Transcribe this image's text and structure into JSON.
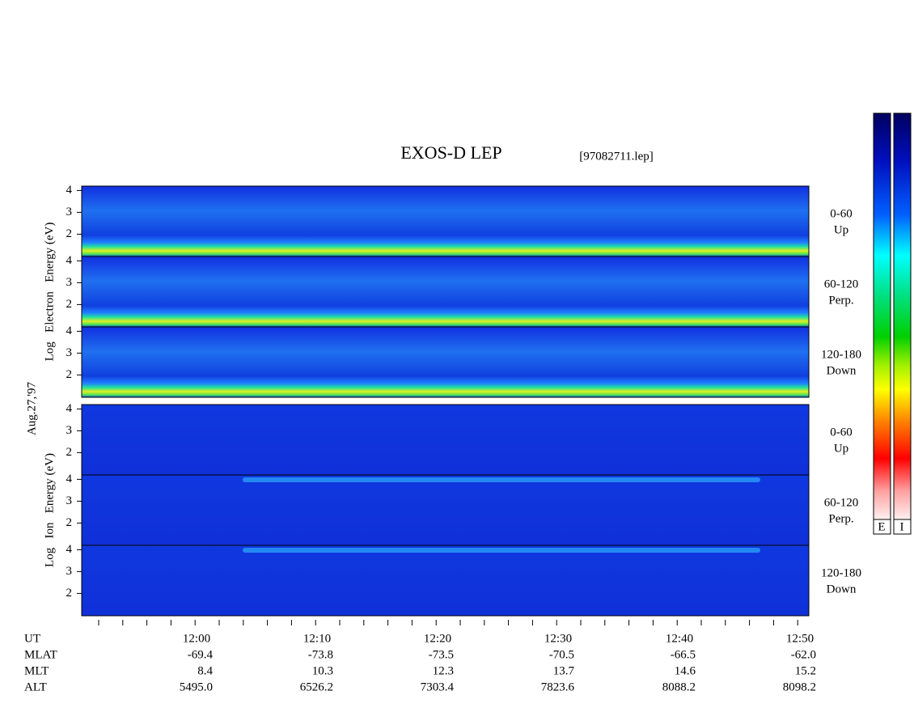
{
  "title": "EXOS-D LEP",
  "file": "[97082711.lep]",
  "date": "Aug.27,'97",
  "electron": {
    "ylabel": "Log   Electron   Energy (eV)",
    "yticks": [
      2,
      3,
      4
    ],
    "panels": [
      {
        "range": "0-60",
        "dir": "Up"
      },
      {
        "range": "60-120",
        "dir": "Perp."
      },
      {
        "range": "120-180",
        "dir": "Down"
      }
    ]
  },
  "ion": {
    "ylabel": "Log   Ion   Energy (eV)",
    "yticks": [
      2,
      3,
      4
    ],
    "panels": [
      {
        "range": "0-60",
        "dir": "Up"
      },
      {
        "range": "60-120",
        "dir": "Perp."
      },
      {
        "range": "120-180",
        "dir": "Down"
      }
    ]
  },
  "time_table": [
    {
      "label": "UT",
      "values": [
        "12:00",
        "12:10",
        "12:20",
        "12:30",
        "12:40",
        "12:50"
      ]
    },
    {
      "label": "MLAT",
      "values": [
        "-69.4",
        "-73.8",
        "-73.5",
        "-70.5",
        "-66.5",
        "-62.0"
      ]
    },
    {
      "label": "MLT",
      "values": [
        "8.4",
        "10.3",
        "12.3",
        "13.7",
        "14.6",
        "15.2"
      ]
    },
    {
      "label": "ALT",
      "values": [
        "5495.0",
        "6526.2",
        "7303.4",
        "7823.6",
        "8088.2",
        "8098.2"
      ]
    }
  ],
  "colorbar_labels": [
    "E",
    "I"
  ]
}
